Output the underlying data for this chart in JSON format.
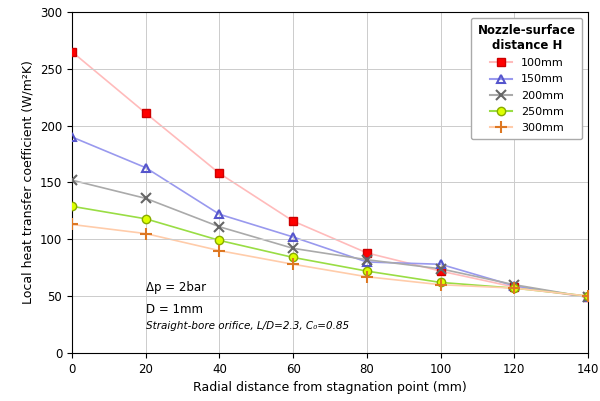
{
  "x": [
    0,
    20,
    40,
    60,
    80,
    100,
    120,
    140
  ],
  "series": {
    "100mm": {
      "y": [
        265,
        211,
        158,
        116,
        88,
        72,
        58,
        49
      ],
      "line_color": "#ffbbbb",
      "marker": "s",
      "marker_face": "#ff0000",
      "marker_edge": "#cc0000",
      "label": "100mm"
    },
    "150mm": {
      "y": [
        190,
        163,
        122,
        102,
        80,
        78,
        59,
        49
      ],
      "line_color": "#9999ee",
      "marker": "^",
      "marker_face": "none",
      "marker_edge": "#5555cc",
      "label": "150mm"
    },
    "200mm": {
      "y": [
        152,
        136,
        111,
        92,
        82,
        74,
        60,
        49
      ],
      "line_color": "#aaaaaa",
      "marker": "x",
      "marker_face": "none",
      "marker_edge": "#666666",
      "label": "200mm"
    },
    "250mm": {
      "y": [
        129,
        118,
        99,
        84,
        72,
        62,
        57,
        50
      ],
      "line_color": "#99dd44",
      "marker": "o",
      "marker_face": "#ddff00",
      "marker_edge": "#88aa00",
      "label": "250mm"
    },
    "300mm": {
      "y": [
        113,
        105,
        90,
        78,
        67,
        60,
        57,
        50
      ],
      "line_color": "#ffccaa",
      "marker": "+",
      "marker_face": "none",
      "marker_edge": "#dd7722",
      "label": "300mm"
    }
  },
  "xlabel": "Radial distance from stagnation point (mm)",
  "ylabel": "Local heat transfer coefficient (W/m²K)",
  "xlim": [
    0,
    140
  ],
  "ylim": [
    0,
    300
  ],
  "xticks": [
    0,
    20,
    40,
    60,
    80,
    100,
    120,
    140
  ],
  "yticks": [
    0,
    50,
    100,
    150,
    200,
    250,
    300
  ],
  "legend_title": "Nozzle-surface\ndistance H",
  "annotation_line1": "Δp = 2bar",
  "annotation_line2": "D = 1mm",
  "annotation_line3": "Straight-bore orifice, L/D=2.3, C₀=0.85",
  "bg_color": "#ffffff",
  "grid_color": "#cccccc"
}
